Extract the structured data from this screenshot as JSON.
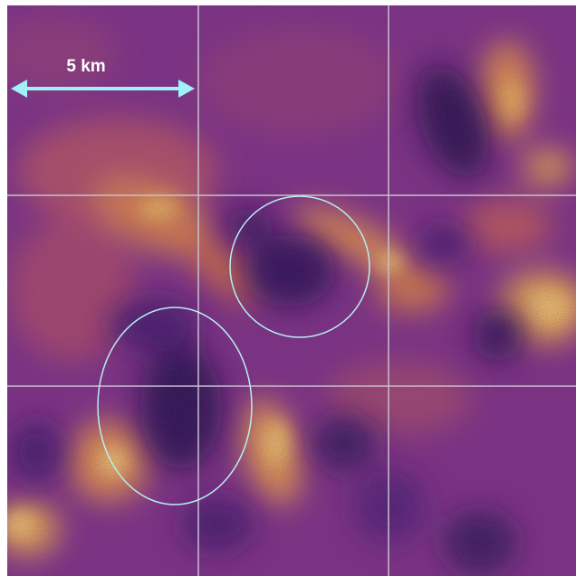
{
  "scale_bar": {
    "label": "5 km"
  }
}
